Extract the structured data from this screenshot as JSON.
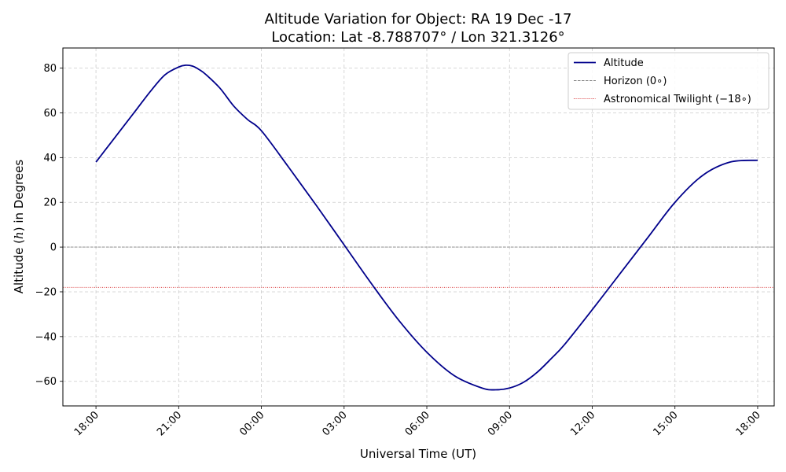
{
  "chart_data": {
    "type": "line",
    "title_line1": "Altitude Variation for Object: RA 19 Dec -17",
    "title_line2": "Location: Lat -8.788707° / Lon 321.3126°",
    "xlabel": "Universal Time (UT)",
    "ylabel": "Altitude (h) in Degrees",
    "ylabel_parts": [
      "Altitude (",
      "h",
      ") in Degrees"
    ],
    "xlim_hours": [
      -1.2,
      24.6
    ],
    "ylim": [
      -71,
      89
    ],
    "x_ticks": [
      {
        "hour": 0,
        "label": "18:00"
      },
      {
        "hour": 3,
        "label": "21:00"
      },
      {
        "hour": 6,
        "label": "00:00"
      },
      {
        "hour": 9,
        "label": "03:00"
      },
      {
        "hour": 12,
        "label": "06:00"
      },
      {
        "hour": 15,
        "label": "09:00"
      },
      {
        "hour": 18,
        "label": "12:00"
      },
      {
        "hour": 21,
        "label": "15:00"
      },
      {
        "hour": 24,
        "label": "18:00"
      }
    ],
    "y_ticks": [
      -60,
      -40,
      -20,
      0,
      20,
      40,
      60,
      80
    ],
    "grid": true,
    "legend_position": "top-right",
    "horizon_value": 0,
    "twilight_value": -18,
    "colors": {
      "altitude": "#00008b",
      "horizon": "#808080",
      "twilight": "#d62728",
      "grid": "#cccccc"
    },
    "series": [
      {
        "name": "Altitude",
        "x_hours": [
          0,
          0.5,
          1,
          1.5,
          2,
          2.5,
          3,
          3.25,
          3.5,
          3.75,
          4,
          4.5,
          5,
          5.5,
          6,
          7,
          8,
          9,
          10,
          11,
          12,
          13,
          14,
          14.5,
          15,
          15.5,
          16,
          16.5,
          17,
          18,
          19,
          20,
          21,
          22,
          23,
          24
        ],
        "y": [
          38,
          46,
          54,
          62,
          70,
          77,
          80.5,
          81.3,
          80.9,
          79.3,
          77,
          71,
          63,
          57,
          52,
          35.5,
          18.5,
          1,
          -16.5,
          -33,
          -47,
          -57.5,
          -63,
          -63.8,
          -63,
          -60.5,
          -56,
          -50,
          -43.5,
          -28,
          -12,
          4,
          20,
          32,
          38,
          38.8
        ]
      }
    ],
    "legend": [
      {
        "key": "altitude",
        "label": "Altitude"
      },
      {
        "key": "horizon",
        "label": "Horizon (0$^\\circ$)"
      },
      {
        "key": "twilight",
        "label": "Astronomical Twilight ($-18^\\circ$)"
      }
    ],
    "legend_display": [
      {
        "key": "altitude",
        "label": "Altitude"
      },
      {
        "key": "horizon",
        "label": "Horizon (0∘)"
      },
      {
        "key": "twilight",
        "label": "Astronomical Twilight (−18∘)"
      }
    ]
  }
}
